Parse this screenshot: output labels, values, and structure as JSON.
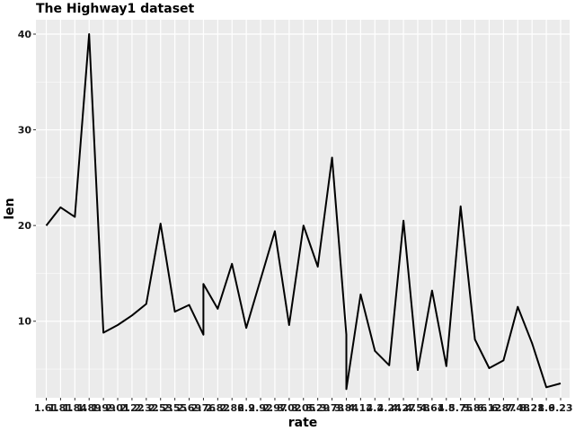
{
  "chart_data": {
    "type": "line",
    "title": "The Highway1 dataset",
    "xlabel": "rate",
    "ylabel": "len",
    "grid": true,
    "ylim": [
      2.0,
      41.5
    ],
    "yticks": [
      10,
      20,
      30,
      40
    ],
    "line_color": "#000000",
    "panel_background": "#ebebeb",
    "grid_color": "#ffffff",
    "x_categories": [
      "1.61",
      "1.81",
      "1.84",
      "1.89",
      "1.99",
      "2.01",
      "2.22",
      "2.32",
      "2.53",
      "2.55",
      "2.69",
      "2.76",
      "2.82",
      "2.86",
      "2.9",
      "2.92",
      "2.97",
      "3.02",
      "3.05",
      "3.29",
      "3.73",
      "3.84",
      "4.12",
      "4.2",
      "4.24",
      "4.27",
      "4.58",
      "4.61",
      "4.8",
      "5.75",
      "5.86",
      "6.12",
      "6.87",
      "7.48",
      "8.21",
      "8.6",
      "9.23"
    ],
    "points": [
      {
        "x": "1.61",
        "y": 20.0
      },
      {
        "x": "1.81",
        "y": 21.9
      },
      {
        "x": "1.84",
        "y": 20.9
      },
      {
        "x": "1.89",
        "y": 40.0
      },
      {
        "x": "1.99",
        "y": 8.8
      },
      {
        "x": "2.01",
        "y": 9.6
      },
      {
        "x": "2.22",
        "y": 10.6
      },
      {
        "x": "2.32",
        "y": 11.8
      },
      {
        "x": "2.53",
        "y": 20.2
      },
      {
        "x": "2.55",
        "y": 11.0
      },
      {
        "x": "2.69",
        "y": 11.7
      },
      {
        "x": "2.76",
        "y": 8.6
      },
      {
        "x": "2.76",
        "y": 13.9
      },
      {
        "x": "2.82",
        "y": 11.3
      },
      {
        "x": "2.86",
        "y": 16.0
      },
      {
        "x": "2.9",
        "y": 9.3
      },
      {
        "x": "2.97",
        "y": 19.4
      },
      {
        "x": "3.02",
        "y": 9.6
      },
      {
        "x": "3.05",
        "y": 20.0
      },
      {
        "x": "3.29",
        "y": 15.7
      },
      {
        "x": "3.73",
        "y": 27.1
      },
      {
        "x": "3.84",
        "y": 8.6
      },
      {
        "x": "3.84",
        "y": 2.9
      },
      {
        "x": "4.12",
        "y": 12.8
      },
      {
        "x": "4.2",
        "y": 6.9
      },
      {
        "x": "4.24",
        "y": 5.4
      },
      {
        "x": "4.27",
        "y": 20.5
      },
      {
        "x": "4.58",
        "y": 4.9
      },
      {
        "x": "4.61",
        "y": 13.2
      },
      {
        "x": "4.8",
        "y": 5.3
      },
      {
        "x": "5.75",
        "y": 22.0
      },
      {
        "x": "5.86",
        "y": 8.1
      },
      {
        "x": "6.12",
        "y": 5.1
      },
      {
        "x": "6.87",
        "y": 5.9
      },
      {
        "x": "7.48",
        "y": 11.5
      },
      {
        "x": "8.21",
        "y": 7.7
      },
      {
        "x": "8.6",
        "y": 3.1
      },
      {
        "x": "9.23",
        "y": 3.5
      }
    ]
  }
}
